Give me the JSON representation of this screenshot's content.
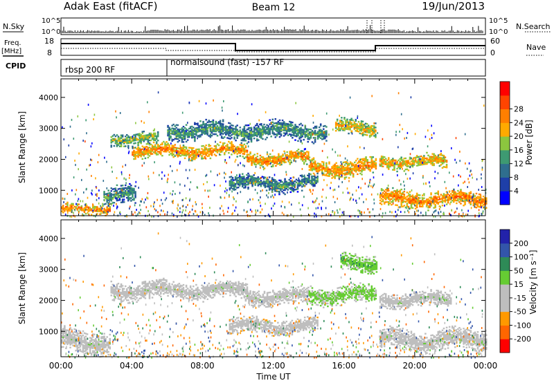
{
  "header": {
    "station": "Adak East (fitACF)",
    "beam": "Beam 12",
    "date": "19/Jun/2013"
  },
  "summary_panels": {
    "nsky": {
      "left_label": "N.Sky",
      "right_label": "N.Search",
      "ticks": [
        "10^5",
        "10^0"
      ]
    },
    "freq": {
      "left_label_1": "Freq.",
      "left_label_2": "[MHz]",
      "left_ticks": [
        "18",
        "8"
      ],
      "right_ticks": [
        "60",
        "0"
      ],
      "right_label": "Nave"
    },
    "cpid": {
      "label": "CPID",
      "segments": [
        {
          "name": "rbsp 200 RF",
          "start_hour": 0,
          "end_hour": 6
        },
        {
          "name": "normalsound (fast) -157 RF",
          "start_hour": 6,
          "end_hour": 24
        }
      ]
    }
  },
  "colors": {
    "power": [
      "#0000ff",
      "#1e3fa8",
      "#2f6e8e",
      "#3e9a72",
      "#8cc63f",
      "#ffaa00",
      "#ff7f00",
      "#ff4400",
      "#ff0000"
    ],
    "velocity": [
      "#ff0000",
      "#ff6600",
      "#ff9900",
      "#bebebe",
      "#bebebe",
      "#66cc33",
      "#2e8b57",
      "#3355aa",
      "#2222aa"
    ]
  },
  "chart_data": [
    {
      "type": "heatmap",
      "quantity": "power",
      "ylabel": "Slant Range [km]",
      "xlabel": "Time UT",
      "x_ticks": [
        "00:00",
        "04:00",
        "08:00",
        "12:00",
        "16:00",
        "20:00",
        "00:00"
      ],
      "xlim_hours": [
        0,
        24
      ],
      "y_ticks": [
        "1000",
        "2000",
        "3000",
        "4000"
      ],
      "ylim_km": [
        180,
        4600
      ],
      "colorbar_label": "Power [dB]",
      "colorbar_ticks": [
        "4",
        "8",
        "12",
        "16",
        "20",
        "24",
        "28"
      ],
      "bands": [
        {
          "start_hour": 0.0,
          "end_hour": 2.8,
          "center_km": 380,
          "width_km": 160,
          "level": 26
        },
        {
          "start_hour": 2.4,
          "end_hour": 4.2,
          "center_km": 800,
          "width_km": 300,
          "level": 14
        },
        {
          "start_hour": 2.8,
          "end_hour": 5.5,
          "center_km": 2650,
          "width_km": 220,
          "level": 18
        },
        {
          "start_hour": 4.0,
          "end_hour": 10.5,
          "center_km": 2250,
          "width_km": 230,
          "level": 25
        },
        {
          "start_hour": 10.5,
          "end_hour": 14.0,
          "center_km": 2000,
          "width_km": 230,
          "level": 25
        },
        {
          "start_hour": 14.0,
          "end_hour": 17.8,
          "center_km": 1700,
          "width_km": 280,
          "level": 25
        },
        {
          "start_hour": 18.0,
          "end_hour": 21.8,
          "center_km": 1900,
          "width_km": 230,
          "level": 23
        },
        {
          "start_hour": 18.0,
          "end_hour": 24.0,
          "center_km": 700,
          "width_km": 280,
          "level": 26
        },
        {
          "start_hour": 9.5,
          "end_hour": 14.5,
          "center_km": 1200,
          "width_km": 260,
          "level": 13
        },
        {
          "start_hour": 15.5,
          "end_hour": 17.8,
          "center_km": 3000,
          "width_km": 260,
          "level": 21
        },
        {
          "start_hour": 6.0,
          "end_hour": 15.0,
          "center_km": 2900,
          "width_km": 300,
          "level": 14
        }
      ]
    },
    {
      "type": "heatmap",
      "quantity": "velocity",
      "ylabel": "Slant Range [km]",
      "xlabel": "Time UT",
      "x_ticks": [
        "00:00",
        "04:00",
        "08:00",
        "12:00",
        "16:00",
        "20:00",
        "00:00"
      ],
      "xlim_hours": [
        0,
        24
      ],
      "y_ticks": [
        "1000",
        "2000",
        "3000",
        "4000"
      ],
      "ylim_km": [
        180,
        4600
      ],
      "colorbar_label": "Velocity [m s⁻¹]",
      "colorbar_ticks": [
        "200",
        "100",
        "50",
        "15",
        "-15",
        "-50",
        "-100",
        "-200"
      ],
      "bands": [
        {
          "start_hour": 0.0,
          "end_hour": 2.8,
          "center_km": 650,
          "width_km": 400,
          "level": 0
        },
        {
          "start_hour": 2.8,
          "end_hour": 10.5,
          "center_km": 2300,
          "width_km": 300,
          "level": 0
        },
        {
          "start_hour": 10.5,
          "end_hour": 14.0,
          "center_km": 2100,
          "width_km": 280,
          "level": 0
        },
        {
          "start_hour": 14.0,
          "end_hour": 17.8,
          "center_km": 2150,
          "width_km": 300,
          "level": 30
        },
        {
          "start_hour": 18.0,
          "end_hour": 22.0,
          "center_km": 2000,
          "width_km": 260,
          "level": 0
        },
        {
          "start_hour": 18.0,
          "end_hour": 24.0,
          "center_km": 700,
          "width_km": 350,
          "level": 0
        },
        {
          "start_hour": 9.5,
          "end_hour": 14.5,
          "center_km": 1150,
          "width_km": 260,
          "level": -20
        },
        {
          "start_hour": 15.8,
          "end_hour": 17.8,
          "center_km": 3200,
          "width_km": 300,
          "level": 40
        }
      ]
    }
  ]
}
